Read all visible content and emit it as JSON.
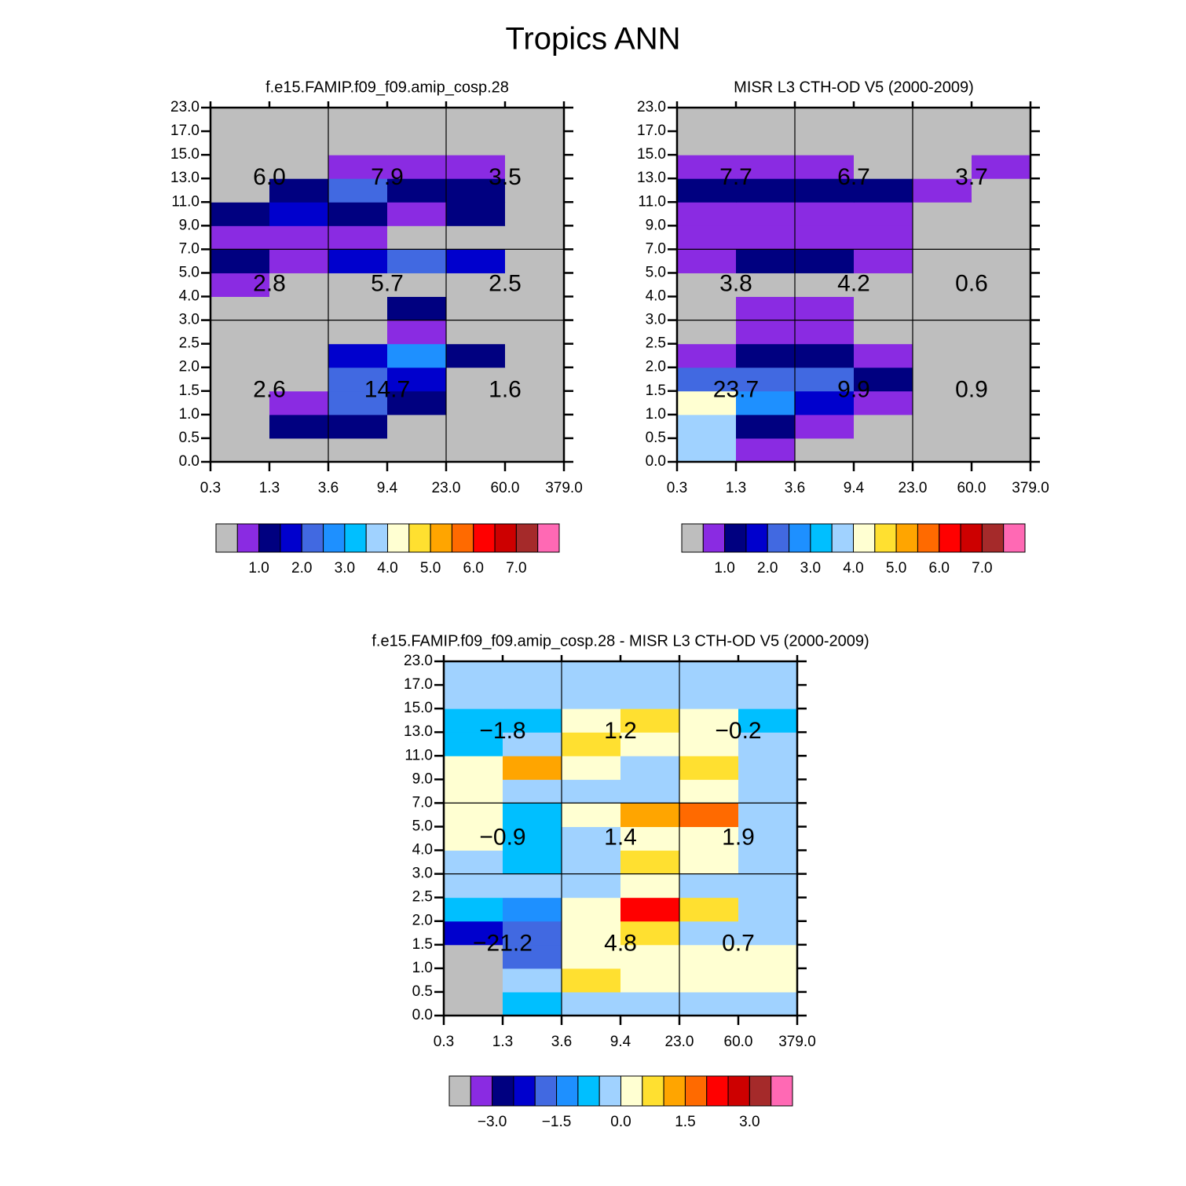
{
  "title": "Tropics ANN",
  "chart_data": [
    {
      "type": "heatmap",
      "title": "f.e15.FAMIP.f09_f09.amip_cosp.28",
      "x_edges": [
        0.3,
        1.3,
        3.6,
        9.4,
        {
          "value": 23,
          "label": "23.0"
        },
        {
          "value": 60,
          "label": "60.0"
        },
        {
          "value": 379,
          "label": "379.0"
        }
      ],
      "y_edges": [
        {
          "value": 0,
          "label": "0.0"
        },
        0.5,
        {
          "value": 1,
          "label": "1.0"
        },
        1.5,
        {
          "value": 2,
          "label": "2.0"
        },
        2.5,
        {
          "value": 3,
          "label": "3.0"
        },
        {
          "value": 4,
          "label": "4.0"
        },
        {
          "value": 5,
          "label": "5.0"
        },
        {
          "value": 7,
          "label": "7.0"
        },
        {
          "value": 9,
          "label": "9.0"
        },
        {
          "value": 11,
          "label": "11.0"
        },
        {
          "value": 13,
          "label": "13.0"
        },
        {
          "value": 15,
          "label": "15.0"
        },
        {
          "value": 17,
          "label": "17.0"
        },
        {
          "value": 23,
          "label": "23.0"
        }
      ],
      "values": [
        [
          0.2,
          0.2,
          0.2,
          0.2,
          0.2,
          0.2
        ],
        [
          0.2,
          1.25,
          1.25,
          0.2,
          0.2,
          0.2
        ],
        [
          0.2,
          0.75,
          2.25,
          1.25,
          0.2,
          0.2
        ],
        [
          0.2,
          0.2,
          2.25,
          1.75,
          0.2,
          0.2
        ],
        [
          0.2,
          0.2,
          1.75,
          2.75,
          1.25,
          0.2
        ],
        [
          0.2,
          0.2,
          0.2,
          0.75,
          0.2,
          0.2
        ],
        [
          0.2,
          0.2,
          0.2,
          1.25,
          0.2,
          0.2
        ],
        [
          0.75,
          0.2,
          0.2,
          0.2,
          0.2,
          0.2
        ],
        [
          1.25,
          0.75,
          1.75,
          2.25,
          1.75,
          0.2
        ],
        [
          0.75,
          0.75,
          0.75,
          0.2,
          0.2,
          0.2
        ],
        [
          1.25,
          1.75,
          1.25,
          0.75,
          1.25,
          0.2
        ],
        [
          0.2,
          1.25,
          2.25,
          1.25,
          1.25,
          0.2
        ],
        [
          0.2,
          0.2,
          0.75,
          0.75,
          0.75,
          0.2
        ],
        [
          0.2,
          0.2,
          0.2,
          0.2,
          0.2,
          0.2
        ],
        [
          0.2,
          0.2,
          0.2,
          0.2,
          0.2,
          0.2
        ]
      ],
      "block_x_edges": [
        3.6,
        23
      ],
      "block_y_edges": [
        3,
        7
      ],
      "blocks": [
        [
          2.6,
          14.7,
          1.6
        ],
        [
          2.8,
          5.7,
          2.5
        ],
        [
          6,
          7.9,
          3.5
        ]
      ],
      "block_labels": [
        [
          "2.6",
          "14.7",
          "1.6"
        ],
        [
          "2.8",
          "5.7",
          "2.5"
        ],
        [
          "6.0",
          "7.9",
          "3.5"
        ]
      ],
      "colorbar": {
        "colors": [
          "#bebebe",
          "#8a2be2",
          "#000080",
          "#0000cd",
          "#4169e1",
          "#1e90ff",
          "#00bfff",
          "#a0d2ff",
          "#ffffd2",
          "#ffe030",
          "#ffa500",
          "#ff6a00",
          "#ff0000",
          "#cd0000",
          "#a52a2a",
          "#ff69b4"
        ],
        "levels": [
          0.5,
          1,
          1.5,
          2,
          2.5,
          3,
          3.5,
          4,
          4.5,
          5,
          5.5,
          6,
          6.5,
          7,
          7.5
        ],
        "ticks": [
          {
            "value": 1,
            "label": "1.0"
          },
          {
            "value": 2,
            "label": "2.0"
          },
          {
            "value": 3,
            "label": "3.0"
          },
          {
            "value": 4,
            "label": "4.0"
          },
          {
            "value": 5,
            "label": "5.0"
          },
          {
            "value": 6,
            "label": "6.0"
          },
          {
            "value": 7,
            "label": "7.0"
          }
        ]
      }
    },
    {
      "type": "heatmap",
      "title": "MISR L3 CTH-OD V5 (2000-2009)",
      "x_edges": [
        0.3,
        1.3,
        3.6,
        9.4,
        {
          "value": 23,
          "label": "23.0"
        },
        {
          "value": 60,
          "label": "60.0"
        },
        {
          "value": 379,
          "label": "379.0"
        }
      ],
      "y_edges": [
        {
          "value": 0,
          "label": "0.0"
        },
        0.5,
        {
          "value": 1,
          "label": "1.0"
        },
        1.5,
        {
          "value": 2,
          "label": "2.0"
        },
        2.5,
        {
          "value": 3,
          "label": "3.0"
        },
        {
          "value": 4,
          "label": "4.0"
        },
        {
          "value": 5,
          "label": "5.0"
        },
        {
          "value": 7,
          "label": "7.0"
        },
        {
          "value": 9,
          "label": "9.0"
        },
        {
          "value": 11,
          "label": "11.0"
        },
        {
          "value": 13,
          "label": "13.0"
        },
        {
          "value": 15,
          "label": "15.0"
        },
        {
          "value": 17,
          "label": "17.0"
        },
        {
          "value": 23,
          "label": "23.0"
        }
      ],
      "values": [
        [
          3.75,
          0.75,
          0.2,
          0.2,
          0.2,
          0.2
        ],
        [
          3.75,
          1.25,
          0.75,
          0.2,
          0.2,
          0.2
        ],
        [
          4.25,
          2.75,
          1.75,
          0.75,
          0.2,
          0.2
        ],
        [
          2.25,
          2.25,
          2.25,
          1.25,
          0.2,
          0.2
        ],
        [
          0.75,
          1.25,
          1.25,
          0.75,
          0.2,
          0.2
        ],
        [
          0.2,
          0.75,
          0.75,
          0.2,
          0.2,
          0.2
        ],
        [
          0.2,
          0.75,
          0.75,
          0.2,
          0.2,
          0.2
        ],
        [
          0.2,
          0.2,
          0.2,
          0.2,
          0.2,
          0.2
        ],
        [
          0.75,
          1.25,
          1.25,
          0.75,
          0.2,
          0.2
        ],
        [
          0.75,
          0.75,
          0.75,
          0.75,
          0.2,
          0.2
        ],
        [
          0.75,
          0.75,
          0.75,
          0.75,
          0.2,
          0.2
        ],
        [
          1.25,
          1.25,
          1.25,
          1.25,
          0.75,
          0.2
        ],
        [
          0.75,
          0.75,
          0.75,
          0.2,
          0.2,
          0.75
        ],
        [
          0.2,
          0.2,
          0.2,
          0.2,
          0.2,
          0.2
        ],
        [
          0.2,
          0.2,
          0.2,
          0.2,
          0.2,
          0.2
        ]
      ],
      "block_x_edges": [
        3.6,
        23
      ],
      "block_y_edges": [
        3,
        7
      ],
      "blocks": [
        [
          23.7,
          9.9,
          0.9
        ],
        [
          3.8,
          4.2,
          0.6
        ],
        [
          7.7,
          6.7,
          3.7
        ]
      ],
      "block_labels": [
        [
          "23.7",
          "9.9",
          "0.9"
        ],
        [
          "3.8",
          "4.2",
          "0.6"
        ],
        [
          "7.7",
          "6.7",
          "3.7"
        ]
      ],
      "colorbar": {
        "colors": [
          "#bebebe",
          "#8a2be2",
          "#000080",
          "#0000cd",
          "#4169e1",
          "#1e90ff",
          "#00bfff",
          "#a0d2ff",
          "#ffffd2",
          "#ffe030",
          "#ffa500",
          "#ff6a00",
          "#ff0000",
          "#cd0000",
          "#a52a2a",
          "#ff69b4"
        ],
        "levels": [
          0.5,
          1,
          1.5,
          2,
          2.5,
          3,
          3.5,
          4,
          4.5,
          5,
          5.5,
          6,
          6.5,
          7,
          7.5
        ],
        "ticks": [
          {
            "value": 1,
            "label": "1.0"
          },
          {
            "value": 2,
            "label": "2.0"
          },
          {
            "value": 3,
            "label": "3.0"
          },
          {
            "value": 4,
            "label": "4.0"
          },
          {
            "value": 5,
            "label": "5.0"
          },
          {
            "value": 6,
            "label": "6.0"
          },
          {
            "value": 7,
            "label": "7.0"
          }
        ]
      }
    },
    {
      "type": "heatmap",
      "title": "f.e15.FAMIP.f09_f09.amip_cosp.28 - MISR L3 CTH-OD V5 (2000-2009)",
      "x_edges": [
        0.3,
        1.3,
        3.6,
        9.4,
        {
          "value": 23,
          "label": "23.0"
        },
        {
          "value": 60,
          "label": "60.0"
        },
        {
          "value": 379,
          "label": "379.0"
        }
      ],
      "y_edges": [
        {
          "value": 0,
          "label": "0.0"
        },
        0.5,
        {
          "value": 1,
          "label": "1.0"
        },
        1.5,
        {
          "value": 2,
          "label": "2.0"
        },
        2.5,
        {
          "value": 3,
          "label": "3.0"
        },
        {
          "value": 4,
          "label": "4.0"
        },
        {
          "value": 5,
          "label": "5.0"
        },
        {
          "value": 7,
          "label": "7.0"
        },
        {
          "value": 9,
          "label": "9.0"
        },
        {
          "value": 11,
          "label": "11.0"
        },
        {
          "value": 13,
          "label": "13.0"
        },
        {
          "value": 15,
          "label": "15.0"
        },
        {
          "value": 17,
          "label": "17.0"
        },
        {
          "value": 23,
          "label": "23.0"
        }
      ],
      "values": [
        [
          -4,
          -0.75,
          -0.25,
          -0.25,
          -0.25,
          -0.25
        ],
        [
          -4,
          -0.25,
          0.75,
          0.25,
          0.25,
          0.25
        ],
        [
          -4,
          -1.75,
          0.25,
          0.25,
          0.25,
          0.25
        ],
        [
          -2.25,
          -1.75,
          0.25,
          0.75,
          -0.25,
          -0.25
        ],
        [
          -0.75,
          -1.25,
          0.25,
          2.25,
          0.75,
          -0.25
        ],
        [
          -0.25,
          -0.25,
          -0.25,
          0.25,
          -0.25,
          -0.25
        ],
        [
          -0.25,
          -0.75,
          -0.25,
          0.75,
          0.25,
          -0.25
        ],
        [
          0.25,
          -0.75,
          -0.25,
          0.25,
          0.25,
          -0.25
        ],
        [
          0.25,
          -0.75,
          0.25,
          1.25,
          1.75,
          -0.25
        ],
        [
          0.25,
          -0.25,
          -0.25,
          -0.25,
          0.25,
          -0.25
        ],
        [
          0.25,
          1.25,
          0.25,
          -0.25,
          0.75,
          -0.25
        ],
        [
          -0.75,
          -0.25,
          0.75,
          0.25,
          0.25,
          -0.25
        ],
        [
          -0.75,
          -0.75,
          0.25,
          0.75,
          0.25,
          -0.75
        ],
        [
          -0.25,
          -0.25,
          -0.25,
          -0.25,
          -0.25,
          -0.25
        ],
        [
          -0.25,
          -0.25,
          -0.25,
          -0.25,
          -0.25,
          -0.25
        ]
      ],
      "block_x_edges": [
        3.6,
        23
      ],
      "block_y_edges": [
        3,
        7
      ],
      "blocks": [
        [
          -21.2,
          4.8,
          0.7
        ],
        [
          -0.9,
          1.4,
          1.9
        ],
        [
          -1.8,
          1.2,
          -0.2
        ]
      ],
      "block_labels": [
        [
          "−21.2",
          "4.8",
          "0.7"
        ],
        [
          "−0.9",
          "1.4",
          "1.9"
        ],
        [
          "−1.8",
          "1.2",
          "−0.2"
        ]
      ],
      "colorbar": {
        "colors": [
          "#bebebe",
          "#8a2be2",
          "#000080",
          "#0000cd",
          "#4169e1",
          "#1e90ff",
          "#00bfff",
          "#a0d2ff",
          "#ffffd2",
          "#ffe030",
          "#ffa500",
          "#ff6a00",
          "#ff0000",
          "#cd0000",
          "#a52a2a",
          "#ff69b4"
        ],
        "levels": [
          -3.5,
          -3,
          -2.5,
          -2,
          -1.5,
          -1,
          -0.5,
          0,
          0.5,
          1,
          1.5,
          2,
          2.5,
          3,
          3.5
        ],
        "ticks": [
          {
            "value": -3,
            "label": "−3.0"
          },
          {
            "value": -1.5,
            "label": "−1.5"
          },
          {
            "value": 0,
            "label": "0.0"
          },
          {
            "value": 1.5,
            "label": "1.5"
          },
          {
            "value": 3,
            "label": "3.0"
          }
        ]
      }
    }
  ]
}
